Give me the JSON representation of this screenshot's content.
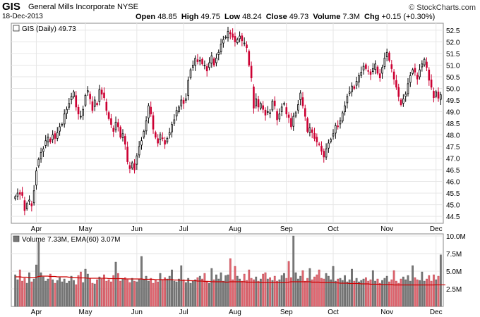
{
  "header": {
    "ticker": "GIS",
    "company": "General Mills Incorporate",
    "exchange": "NYSE",
    "date": "18-Dec-2013",
    "watermark": "© StockCharts.com",
    "open_label": "Open",
    "open": "48.85",
    "high_label": "High",
    "high": "49.75",
    "low_label": "Low",
    "low": "48.24",
    "close_label": "Close",
    "close": "49.73",
    "volume_label": "Volume",
    "volume": "7.3M",
    "chg_label": "Chg",
    "chg": "+0.15 (+0.30%)"
  },
  "chart_data": [
    {
      "type": "candlestick",
      "legend": "GIS (Daily) 49.73",
      "legend_placement": "top-left",
      "ylim": [
        44.2,
        52.8
      ],
      "y_ticks": [
        44.5,
        45.0,
        45.5,
        46.0,
        46.5,
        47.0,
        47.5,
        48.0,
        48.5,
        49.0,
        49.5,
        50.0,
        50.5,
        51.0,
        51.5,
        52.0,
        52.5
      ],
      "y_tick_labels": [
        "44.5",
        "45.0",
        "45.5",
        "46.0",
        "46.5",
        "47.0",
        "47.5",
        "48.0",
        "48.5",
        "49.0",
        "49.5",
        "50.0",
        "50.5",
        "51.0",
        "51.5",
        "52.0",
        "52.5"
      ],
      "x_tick_labels": [
        "Apr",
        "May",
        "Jun",
        "Jul",
        "Aug",
        "Sep",
        "Oct",
        "Nov",
        "Dec"
      ],
      "x_tick_index": [
        9,
        30,
        52,
        72,
        94,
        116,
        136,
        159,
        180
      ],
      "grid": true,
      "colors": {
        "up": "#000000",
        "down": "#cc0033"
      },
      "closes": [
        45.35,
        45.5,
        45.45,
        45.4,
        44.75,
        45.05,
        45.2,
        44.95,
        45.6,
        46.45,
        46.95,
        47.25,
        47.4,
        47.75,
        47.9,
        47.7,
        48.0,
        47.85,
        48.1,
        48.35,
        48.45,
        48.9,
        49.1,
        49.35,
        49.65,
        49.85,
        49.2,
        48.9,
        48.8,
        49.1,
        49.7,
        49.9,
        49.55,
        49.05,
        49.5,
        49.3,
        49.95,
        49.75,
        49.6,
        49.05,
        48.7,
        48.45,
        48.15,
        48.55,
        48.35,
        47.9,
        48.05,
        47.6,
        46.85,
        46.55,
        46.8,
        46.5,
        47.1,
        47.5,
        47.75,
        48.15,
        48.6,
        49.25,
        48.9,
        48.25,
        47.9,
        47.65,
        48.0,
        47.85,
        47.6,
        47.85,
        48.1,
        48.45,
        48.65,
        49.05,
        49.2,
        49.5,
        49.35,
        49.55,
        50.35,
        50.8,
        51.0,
        51.3,
        51.15,
        51.2,
        51.05,
        51.0,
        50.75,
        51.1,
        51.4,
        51.0,
        51.3,
        51.55,
        51.9,
        52.1,
        52.2,
        52.45,
        52.35,
        52.2,
        52.0,
        52.1,
        52.25,
        52.05,
        51.95,
        51.75,
        51.0,
        50.45,
        49.15,
        49.55,
        49.2,
        49.35,
        49.1,
        48.85,
        49.0,
        48.95,
        49.45,
        49.25,
        48.65,
        48.9,
        49.2,
        49.35,
        48.9,
        48.75,
        48.35,
        48.8,
        48.95,
        49.3,
        49.8,
        49.25,
        48.8,
        48.15,
        48.3,
        48.1,
        47.85,
        47.7,
        47.6,
        47.3,
        47.05,
        47.4,
        47.65,
        47.8,
        48.05,
        48.4,
        48.35,
        48.6,
        48.95,
        49.25,
        49.65,
        49.85,
        50.1,
        50.0,
        50.3,
        50.55,
        50.7,
        50.95,
        50.85,
        50.75,
        50.6,
        50.85,
        51.05,
        50.65,
        50.45,
        50.9,
        51.3,
        51.55,
        51.2,
        50.85,
        50.4,
        50.05,
        49.65,
        49.3,
        49.55,
        49.75,
        50.2,
        50.55,
        50.8,
        50.7,
        50.4,
        50.8,
        51.05,
        51.25,
        50.9,
        50.35,
        50.05,
        49.6,
        49.85,
        49.58,
        49.73
      ],
      "volume": {
        "legend": "Volume 7.33M, EMA(60) 3.07M",
        "ylim": [
          0,
          10.3
        ],
        "y_ticks": [
          2.5,
          5.0,
          7.5,
          10.0
        ],
        "y_tick_labels": [
          "2.5M",
          "5.0M",
          "7.5M",
          "10.0M"
        ],
        "values_m": [
          4.5,
          3.8,
          5.2,
          3.6,
          4.0,
          3.3,
          4.8,
          3.5,
          3.9,
          5.9,
          9.2,
          4.8,
          4.2,
          3.6,
          3.9,
          4.6,
          3.8,
          3.3,
          3.7,
          4.1,
          3.5,
          3.9,
          3.3,
          3.6,
          4.3,
          3.7,
          3.1,
          4.4,
          4.9,
          3.4,
          5.3,
          4.6,
          4.0,
          3.3,
          3.2,
          3.8,
          4.2,
          3.9,
          4.5,
          3.6,
          3.8,
          3.5,
          4.4,
          6.3,
          4.7,
          3.6,
          3.9,
          4.1,
          3.8,
          3.4,
          4.0,
          3.6,
          3.5,
          3.9,
          7.1,
          3.8,
          4.3,
          3.6,
          4.0,
          3.3,
          3.7,
          3.5,
          4.7,
          3.8,
          4.1,
          3.9,
          4.3,
          5.2,
          3.6,
          3.5,
          3.9,
          5.8,
          3.8,
          3.4,
          4.0,
          3.3,
          3.6,
          3.8,
          4.1,
          4.3,
          3.9,
          4.7,
          3.6,
          3.3,
          5.4,
          3.8,
          4.5,
          3.9,
          4.8,
          3.6,
          4.4,
          4.5,
          6.8,
          3.8,
          5.7,
          4.3,
          3.9,
          3.6,
          4.6,
          3.7,
          5.2,
          4.0,
          3.8,
          4.2,
          3.6,
          3.9,
          4.6,
          4.8,
          3.9,
          4.1,
          3.7,
          4.3,
          3.6,
          3.8,
          4.4,
          4.7,
          4.0,
          6.4,
          4.1,
          10.0,
          4.8,
          3.9,
          4.3,
          5.1,
          3.6,
          4.0,
          5.4,
          3.8,
          4.2,
          4.5,
          5.2,
          4.0,
          3.9,
          4.7,
          4.3,
          3.8,
          5.7,
          3.6,
          3.9,
          4.0,
          3.7,
          4.4,
          3.5,
          3.8,
          5.3,
          3.6,
          4.0,
          3.5,
          3.7,
          3.9,
          4.1,
          3.6,
          3.8,
          5.1,
          3.6,
          3.9,
          3.3,
          3.7,
          4.0,
          4.3,
          3.5,
          3.8,
          5.1,
          3.6,
          3.3,
          3.9,
          4.2,
          3.8,
          4.4,
          3.6,
          5.8,
          4.1,
          3.8,
          3.7,
          4.9,
          3.6,
          3.9,
          4.4,
          3.6,
          4.5,
          3.8,
          4.3,
          7.33
        ],
        "ema_m": [
          4.2,
          4.2,
          4.2,
          4.15,
          4.15,
          4.15,
          4.1,
          4.1,
          4.1,
          4.15,
          4.25,
          4.3,
          4.3,
          4.3,
          4.3,
          4.25,
          4.25,
          4.25,
          4.2,
          4.2,
          4.2,
          4.2,
          4.2,
          4.15,
          4.15,
          4.1,
          4.1,
          4.05,
          4.05,
          4.05,
          4.05,
          4.0,
          4.0,
          4.0,
          4.0,
          4.0,
          4.0,
          4.0,
          4.0,
          4.0,
          3.95,
          3.95,
          3.95,
          3.95,
          3.95,
          3.95,
          3.95,
          3.9,
          3.9,
          3.9,
          3.9,
          3.9,
          3.9,
          3.9,
          3.9,
          3.85,
          3.85,
          3.85,
          3.85,
          3.85,
          3.8,
          3.8,
          3.8,
          3.8,
          3.8,
          3.8,
          3.8,
          3.8,
          3.75,
          3.75,
          3.75,
          3.7,
          3.7,
          3.7,
          3.7,
          3.65,
          3.65,
          3.65,
          3.6,
          3.6,
          3.6,
          3.55,
          3.55,
          3.55,
          3.5,
          3.5,
          3.5,
          3.5,
          3.5,
          3.5,
          3.45,
          3.45,
          3.5,
          3.5,
          3.5,
          3.5,
          3.5,
          3.5,
          3.5,
          3.45,
          3.45,
          3.45,
          3.45,
          3.45,
          3.45,
          3.4,
          3.4,
          3.4,
          3.4,
          3.4,
          3.4,
          3.4,
          3.4,
          3.4,
          3.4,
          3.4,
          3.4,
          3.45,
          3.5,
          3.5,
          3.5,
          3.5,
          3.5,
          3.5,
          3.5,
          3.5,
          3.5,
          3.45,
          3.45,
          3.45,
          3.45,
          3.4,
          3.4,
          3.4,
          3.4,
          3.4,
          3.4,
          3.35,
          3.35,
          3.3,
          3.3,
          3.3,
          3.3,
          3.25,
          3.25,
          3.25,
          3.25,
          3.25,
          3.2,
          3.2,
          3.2,
          3.2,
          3.15,
          3.15,
          3.15,
          3.15,
          3.15,
          3.1,
          3.1,
          3.1,
          3.1,
          3.1,
          3.05,
          3.05,
          3.05,
          3.05,
          3.05,
          3.05,
          3.05,
          3.05,
          3.05,
          3.05,
          3.05,
          3.05,
          3.05,
          3.05,
          3.05,
          3.05,
          3.05,
          3.05,
          3.07,
          3.07,
          3.07,
          3.07,
          3.07
        ]
      }
    }
  ]
}
